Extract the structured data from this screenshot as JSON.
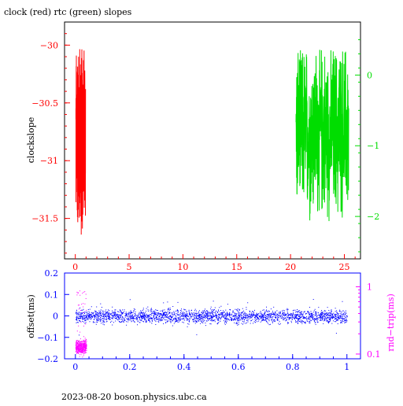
{
  "title": "clock (red) rtc (green) slopes",
  "footer": "2023-08-20  boson.physics.ubc.ca",
  "colors": {
    "clock": "#ff0000",
    "rtc": "#00dd00",
    "offset": "#0000ff",
    "rndtrip": "#ff00ff",
    "frame": "#000000"
  },
  "chart_data": [
    {
      "type": "line",
      "title": "clock (red) rtc (green) slopes",
      "ylabel": "clockslope",
      "ylabel_right": "",
      "x_ticks": [
        "0",
        "5",
        "10",
        "15",
        "20",
        "25"
      ],
      "xlim": [
        -1,
        26.5
      ],
      "ylim_left": [
        -31.85,
        -29.8
      ],
      "ylim_right": [
        -2.6,
        0.75
      ],
      "y_ticks_left": [
        "-30",
        "-30.5",
        "-31",
        "-31.5"
      ],
      "y_ticks_right": [
        "0",
        "-1",
        "-2"
      ],
      "grid": false,
      "series": [
        {
          "name": "clock",
          "axis": "left",
          "x_range": [
            0.05,
            0.95
          ],
          "points": 260,
          "y_range": [
            -31.75,
            -29.9
          ],
          "center": -30.8
        },
        {
          "name": "rtc",
          "axis": "right",
          "x_range": [
            20.5,
            25.4
          ],
          "points": 420,
          "y_range": [
            -2.5,
            0.35
          ],
          "center": -0.8
        }
      ]
    },
    {
      "type": "scatter",
      "ylabel": "offset(ms)",
      "ylabel_right": "rnd−trip(ms)",
      "x_ticks": [
        "0",
        "0.2",
        "0.4",
        "0.6",
        "0.8",
        "1"
      ],
      "xlim": [
        -0.04,
        1.05
      ],
      "ylim_left": [
        -0.2,
        0.2
      ],
      "y_ticks_left": [
        "0.2",
        "0.1",
        "0",
        "−0.1",
        "−0.2"
      ],
      "ylim_right_log": [
        0.085,
        1.6
      ],
      "y_ticks_right": [
        "1",
        "0.1"
      ],
      "series": [
        {
          "name": "offset",
          "axis": "left",
          "x_range": [
            0,
            1
          ],
          "count": 6000,
          "center": 0,
          "spread": 0.022,
          "outliers": 0.09
        },
        {
          "name": "rnd-trip",
          "axis": "right",
          "x_range": [
            0,
            0.04
          ],
          "count": 500,
          "log_center": 0.13,
          "log_spread": 0.02
        }
      ]
    }
  ]
}
